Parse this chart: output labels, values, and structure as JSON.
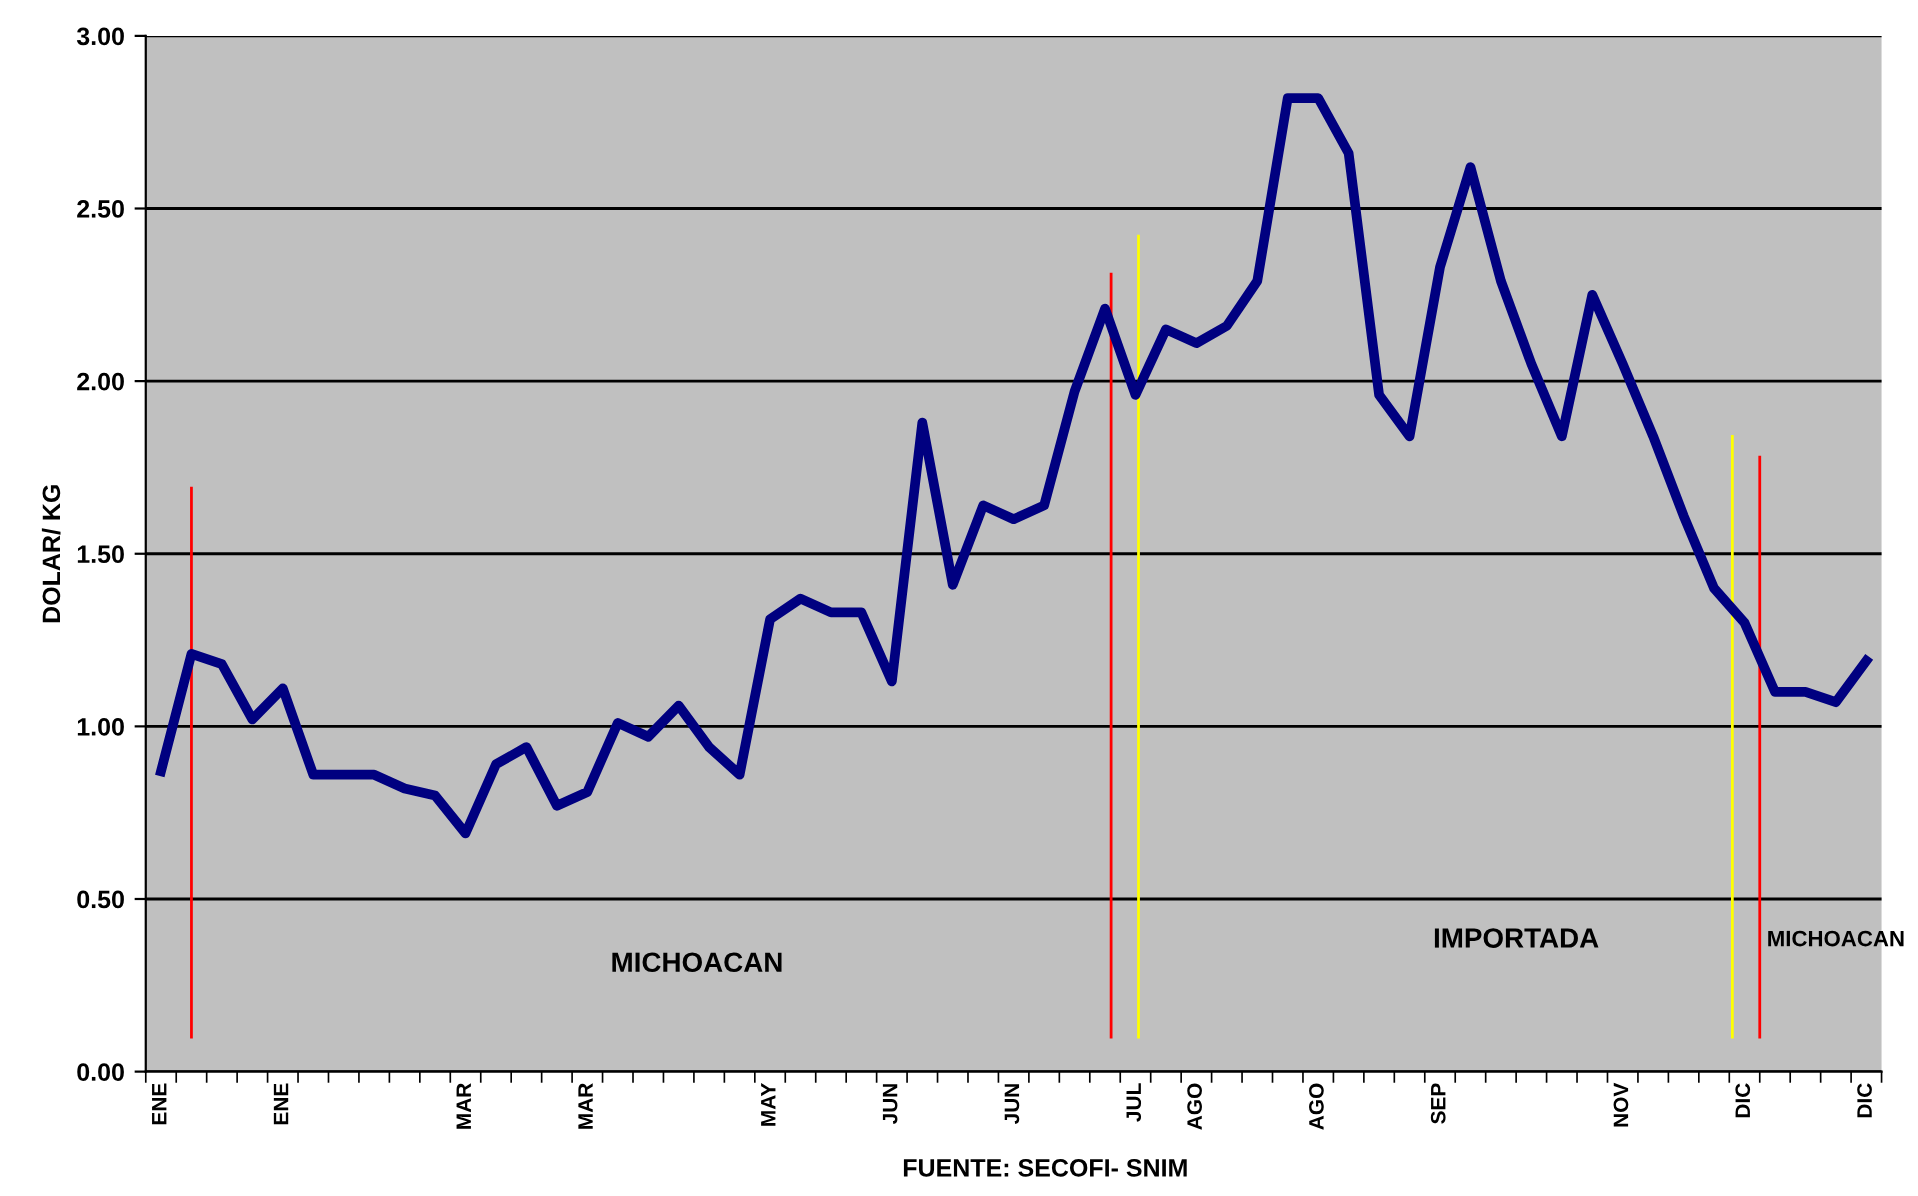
{
  "chart_data": {
    "type": "line",
    "ylabel": "DOLAR/ KG",
    "categories": [
      "ENE",
      null,
      null,
      null,
      "ENE",
      null,
      null,
      null,
      null,
      null,
      "MAR",
      null,
      null,
      null,
      "MAR",
      null,
      null,
      null,
      null,
      null,
      "MAY",
      null,
      null,
      null,
      "JUN",
      null,
      null,
      null,
      "JUN",
      null,
      null,
      null,
      "JUL",
      null,
      "AGO",
      null,
      null,
      null,
      "AGO",
      null,
      null,
      null,
      "SEP",
      null,
      null,
      null,
      null,
      null,
      "NOV",
      null,
      null,
      null,
      "DIC",
      null,
      null,
      null,
      "DIC"
    ],
    "series": [
      {
        "color": "#000080",
        "values": [
          0.87,
          1.21,
          1.18,
          1.02,
          1.11,
          0.86,
          0.86,
          0.86,
          0.82,
          0.8,
          0.69,
          0.89,
          0.94,
          0.77,
          0.81,
          1.01,
          0.97,
          1.06,
          0.94,
          0.86,
          1.31,
          1.37,
          1.33,
          1.33,
          1.13,
          1.88,
          1.41,
          1.64,
          1.6,
          1.64,
          1.97,
          2.21,
          1.96,
          2.15,
          2.11,
          2.16,
          2.29,
          2.82,
          2.82,
          2.66,
          1.96,
          1.84,
          2.33,
          2.62,
          2.29,
          2.05,
          1.84,
          2.25,
          2.05,
          1.84,
          1.61,
          1.4,
          1.3,
          1.1,
          1.1,
          1.07,
          1.19
        ]
      }
    ],
    "ylim": [
      0,
      3
    ],
    "yticks": [
      {
        "value": 0,
        "label": "0.00"
      },
      {
        "value": 0.5,
        "label": "0.50"
      },
      {
        "value": 1,
        "label": "1.00"
      },
      {
        "value": 1.5,
        "label": "1.50"
      },
      {
        "value": 2,
        "label": "2.00"
      },
      {
        "value": 2.5,
        "label": "2.50"
      },
      {
        "value": 3,
        "label": "3.00"
      }
    ],
    "annotations": [
      "MICHOACAN",
      "IMPORTADA",
      "MICHOACAN",
      "FUENTE: SECOFI- SNIM"
    ],
    "grid": "y",
    "marker": "none",
    "line_style": "solid",
    "legend": false
  }
}
